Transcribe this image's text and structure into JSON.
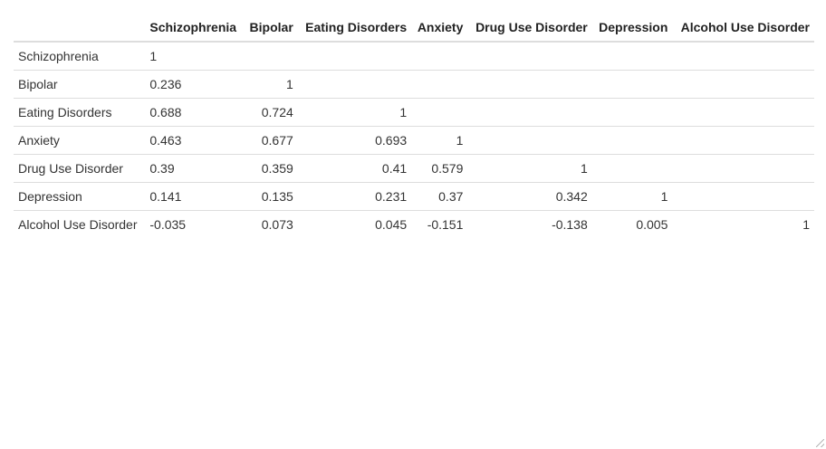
{
  "chart_data": {
    "type": "table",
    "columns": [
      "Schizophrenia",
      "Bipolar",
      "Eating Disorders",
      "Anxiety",
      "Drug Use Disorder",
      "Depression",
      "Alcohol Use Disorder"
    ],
    "rows": [
      {
        "label": "Schizophrenia",
        "values": [
          "1",
          "",
          "",
          "",
          "",
          "",
          ""
        ]
      },
      {
        "label": "Bipolar",
        "values": [
          "0.236",
          "1",
          "",
          "",
          "",
          "",
          ""
        ]
      },
      {
        "label": "Eating Disorders",
        "values": [
          "0.688",
          "0.724",
          "1",
          "",
          "",
          "",
          ""
        ]
      },
      {
        "label": "Anxiety",
        "values": [
          "0.463",
          "0.677",
          "0.693",
          "1",
          "",
          "",
          ""
        ]
      },
      {
        "label": "Drug Use Disorder",
        "values": [
          "0.39",
          "0.359",
          "0.41",
          "0.579",
          "1",
          "",
          ""
        ]
      },
      {
        "label": "Depression",
        "values": [
          "0.141",
          "0.135",
          "0.231",
          "0.37",
          "0.342",
          "1",
          ""
        ]
      },
      {
        "label": "Alcohol Use Disorder",
        "values": [
          "-0.035",
          "0.073",
          "0.045",
          "-0.151",
          "-0.138",
          "0.005",
          "1"
        ]
      }
    ]
  }
}
